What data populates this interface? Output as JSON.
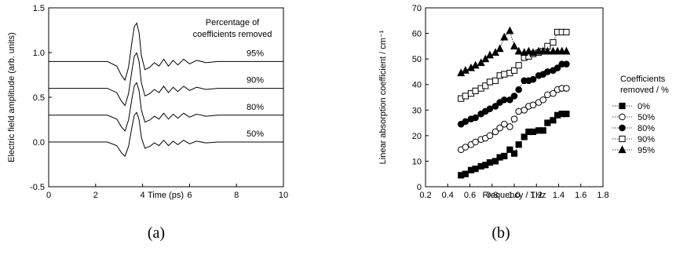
{
  "chart_data": [
    {
      "type": "line",
      "panel_label": "(a)",
      "xlabel": "Time (ps)",
      "ylabel": "Electric field amplitude (arb. units)",
      "xlim": [
        0,
        10
      ],
      "ylim": [
        -0.5,
        1.5
      ],
      "x_ticks": [
        "0",
        "2",
        "4",
        "6",
        "8",
        "10"
      ],
      "y_ticks": [
        "-0.5",
        "0.0",
        "0.5",
        "1.0",
        "1.5"
      ],
      "legend_title": [
        "Percentage of",
        "coefficients removed"
      ],
      "series": [
        {
          "name": "50%",
          "offset": 0.0
        },
        {
          "name": "80%",
          "offset": 0.3
        },
        {
          "name": "90%",
          "offset": 0.6
        },
        {
          "name": "95%",
          "offset": 0.9
        }
      ],
      "pulse_x": [
        0,
        1.5,
        2.5,
        2.9,
        3.1,
        3.25,
        3.4,
        3.55,
        3.65,
        3.75,
        3.85,
        3.95,
        4.1,
        4.3,
        4.5,
        4.7,
        4.9,
        5.1,
        5.3,
        5.5,
        5.75,
        6.0,
        6.3,
        6.7,
        7.2,
        8.0,
        10
      ],
      "pulse_y": [
        0,
        0,
        0.0,
        -0.04,
        -0.12,
        -0.16,
        -0.05,
        0.17,
        0.3,
        0.33,
        0.25,
        0.05,
        -0.07,
        -0.05,
        -0.01,
        -0.04,
        0.02,
        -0.04,
        0.01,
        -0.03,
        0.02,
        -0.02,
        0.01,
        -0.01,
        0.0,
        0.0,
        0.0
      ]
    },
    {
      "type": "scatter",
      "panel_label": "(b)",
      "xlabel": "Frequency / THz",
      "ylabel": "Linear absorption coefficient / cm⁻¹",
      "xlim": [
        0.2,
        1.8
      ],
      "ylim": [
        0,
        70
      ],
      "x_ticks": [
        "0.2",
        "0.4",
        "0.6",
        "0.8",
        "1.0",
        "1.2",
        "1.4",
        "1.6",
        "1.8"
      ],
      "y_ticks": [
        "0",
        "10",
        "20",
        "30",
        "40",
        "50",
        "60",
        "70"
      ],
      "legend_title": [
        "Coefficients",
        "removed / %"
      ],
      "x": [
        0.52,
        0.56,
        0.61,
        0.65,
        0.7,
        0.74,
        0.78,
        0.83,
        0.87,
        0.91,
        0.96,
        1.0,
        1.04,
        1.09,
        1.13,
        1.17,
        1.22,
        1.26,
        1.3,
        1.35,
        1.39,
        1.43,
        1.47
      ],
      "series": [
        {
          "name": "0%",
          "marker": "square-filled",
          "values": [
            4.5,
            5.0,
            6.5,
            7.0,
            8.0,
            8.5,
            9.5,
            10.0,
            11.5,
            12.0,
            14.5,
            13.0,
            16.5,
            19.5,
            21.5,
            21.5,
            22.0,
            22.0,
            25.0,
            26.0,
            28.0,
            28.5,
            28.5
          ]
        },
        {
          "name": "50%",
          "marker": "circle-open",
          "values": [
            14.5,
            15.5,
            16.5,
            17.5,
            18.5,
            19.0,
            20.0,
            21.5,
            23.0,
            24.5,
            23.5,
            26.5,
            29.5,
            30.0,
            31.5,
            32.0,
            33.0,
            34.0,
            36.0,
            36.5,
            38.0,
            38.5,
            38.5
          ]
        },
        {
          "name": "80%",
          "marker": "circle-filled",
          "values": [
            24.5,
            25.5,
            26.5,
            27.0,
            28.5,
            29.5,
            30.5,
            31.5,
            33.0,
            34.0,
            34.0,
            35.5,
            38.0,
            41.5,
            41.5,
            42.0,
            43.5,
            44.0,
            45.0,
            45.5,
            46.5,
            48.0,
            48.0
          ]
        },
        {
          "name": "90%",
          "marker": "square-open",
          "values": [
            34.5,
            35.5,
            36.5,
            37.5,
            38.5,
            39.5,
            41.0,
            41.5,
            43.5,
            44.0,
            44.5,
            45.5,
            47.5,
            50.5,
            51.0,
            52.0,
            52.5,
            53.0,
            55.0,
            56.5,
            60.5,
            60.5,
            60.5
          ]
        },
        {
          "name": "95%",
          "marker": "triangle-filled",
          "values": [
            44.5,
            45.5,
            46.5,
            47.5,
            48.5,
            50.0,
            51.5,
            52.5,
            54.0,
            58.5,
            61.0,
            55.0,
            53.0,
            52.5,
            53.0,
            52.5,
            53.0,
            53.0,
            53.0,
            53.0,
            53.0,
            53.0,
            53.0
          ]
        }
      ]
    }
  ]
}
